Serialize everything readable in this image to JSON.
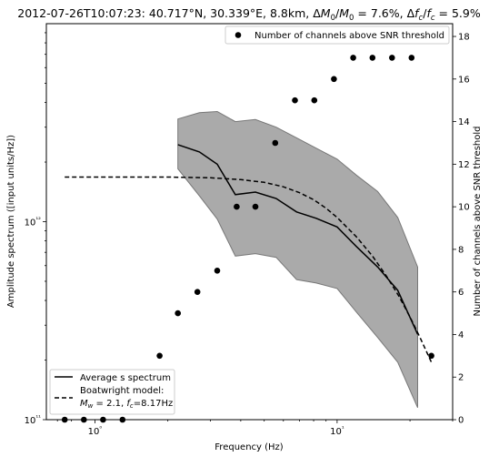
{
  "chart_data": {
    "type": "line",
    "title": "2012-07-26T10:07:23: 40.717°N, 30.339°E, 8.8km, ΔM₀/M₀ = 7.6%, Δf꜀/f꜀ = 5.9%",
    "title_parts": {
      "prefix": "2012-07-26T10:07:23: 40.717°N, 30.339°E, 8.8km, ",
      "m0_unc": "7.6%",
      "fc_unc": "5.9%"
    },
    "xlabel": "Frequency (Hz)",
    "ylabel": "Amplitude spectrum ([input units/Hz])",
    "y2label": "Number of channels above SNR threshold",
    "x_scale": "log",
    "y_scale": "log",
    "xlim": [
      0.63,
      30
    ],
    "ylim": [
      100000000000.0,
      10000000000000.0
    ],
    "y2lim": [
      0,
      18.6
    ],
    "x_ticks": [
      {
        "value": 1,
        "label": "10⁰"
      },
      {
        "value": 10,
        "label": "10¹"
      }
    ],
    "y_ticks": [
      {
        "value": 100000000000.0,
        "label": "10¹¹"
      },
      {
        "value": 1000000000000.0,
        "label": "10¹²"
      }
    ],
    "y2_ticks": [
      0,
      2,
      4,
      6,
      8,
      10,
      12,
      14,
      16,
      18
    ],
    "grid": false,
    "legend_upper": {
      "placement": "upper right",
      "label": "Number of channels above SNR threshold"
    },
    "legend_lower": {
      "placement": "lower left",
      "average_label": "Average s spectrum",
      "model_label": "Boatwright model:",
      "model_params": {
        "mw": "2.1",
        "fc": "8.17"
      }
    },
    "series": [
      {
        "name": "Average s spectrum",
        "kind": "line",
        "style": "solid",
        "color": "#000000",
        "x": [
          2.2,
          2.7,
          3.2,
          3.8,
          4.6,
          5.6,
          6.8,
          8.2,
          10,
          12,
          14.7,
          17.8,
          21.5
        ],
        "y": [
          2450000000000.0,
          2250000000000.0,
          1950000000000.0,
          1370000000000.0,
          1410000000000.0,
          1310000000000.0,
          1120000000000.0,
          1040000000000.0,
          940000000000.0,
          750000000000.0,
          590000000000.0,
          450000000000.0,
          270000000000.0
        ]
      },
      {
        "name": "Boatwright model",
        "kind": "line",
        "style": "dashed",
        "color": "#000000",
        "x": [
          0.75,
          1.0,
          1.5,
          2.0,
          3.0,
          4.0,
          5.0,
          6.0,
          7.0,
          8.0,
          9.0,
          10,
          12,
          14,
          16,
          18,
          20,
          22,
          24.5
        ],
        "y": [
          1680000000000.0,
          1680000000000.0,
          1680000000000.0,
          1680000000000.0,
          1665000000000.0,
          1630000000000.0,
          1580000000000.0,
          1500000000000.0,
          1400000000000.0,
          1290000000000.0,
          1170000000000.0,
          1050000000000.0,
          840000000000.0,
          670000000000.0,
          530000000000.0,
          420000000000.0,
          330000000000.0,
          260000000000.0,
          195000000000.0
        ]
      },
      {
        "name": "spread band",
        "kind": "band",
        "fill": "#aaaaaa",
        "edge": "#777777",
        "x": [
          2.2,
          2.7,
          3.2,
          3.8,
          4.6,
          5.6,
          6.8,
          8.2,
          10,
          12,
          14.7,
          17.8,
          21.5
        ],
        "lower": [
          1850000000000.0,
          1350000000000.0,
          1030000000000.0,
          670000000000.0,
          690000000000.0,
          660000000000.0,
          510000000000.0,
          490000000000.0,
          460000000000.0,
          350000000000.0,
          260000000000.0,
          195000000000.0,
          115000000000.0
        ],
        "upper": [
          3300000000000.0,
          3550000000000.0,
          3600000000000.0,
          3200000000000.0,
          3280000000000.0,
          3000000000000.0,
          2650000000000.0,
          2350000000000.0,
          2070000000000.0,
          1720000000000.0,
          1420000000000.0,
          1050000000000.0,
          590000000000.0
        ]
      },
      {
        "name": "Number of channels above SNR threshold",
        "kind": "scatter",
        "axis": "right",
        "color": "#000000",
        "x": [
          0.75,
          0.9,
          1.08,
          1.3,
          1.85,
          2.2,
          2.65,
          3.2,
          3.85,
          4.6,
          5.55,
          6.7,
          8.05,
          9.7,
          11.65,
          14.0,
          16.85,
          20.3,
          24.5
        ],
        "y": [
          0,
          0,
          0,
          0,
          3,
          5,
          6,
          7,
          10,
          10,
          13,
          15,
          15,
          16,
          17,
          17,
          17,
          17,
          3
        ]
      }
    ]
  }
}
